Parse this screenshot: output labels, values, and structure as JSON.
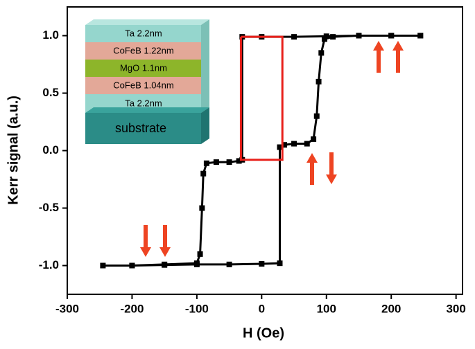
{
  "chart_data": {
    "type": "line",
    "xlabel": "H (Oe)",
    "ylabel": "Kerr signal (a.u.)",
    "xlim": [
      -300,
      310
    ],
    "ylim": [
      -1.25,
      1.25
    ],
    "xticks": [
      -300,
      -200,
      -100,
      0,
      100,
      200,
      300
    ],
    "yticks": [
      {
        "value": -1.0,
        "label": "-1.0"
      },
      -0.5,
      {
        "value": 0.0,
        "label": "0.0"
      },
      0.5,
      {
        "value": 1.0,
        "label": "1.0"
      }
    ],
    "series": [
      {
        "color": "#000000",
        "markers": true,
        "x": [
          245,
          200,
          150,
          100,
          50,
          0,
          -30,
          -30,
          -35,
          -50,
          -70,
          -85,
          -90,
          -92,
          -95,
          -100,
          -150,
          -200,
          -245,
          -200,
          -150,
          -100,
          -50,
          0,
          28,
          28,
          35,
          50,
          70,
          80,
          85,
          88,
          92,
          97,
          110,
          150,
          200,
          245
        ],
        "values": [
          1.0,
          1.0,
          1.0,
          0.995,
          0.99,
          0.99,
          0.99,
          -0.08,
          -0.09,
          -0.1,
          -0.1,
          -0.11,
          -0.2,
          -0.5,
          -0.9,
          -0.98,
          -0.99,
          -1.0,
          -1.0,
          -1.0,
          -0.995,
          -0.99,
          -0.99,
          -0.985,
          -0.98,
          0.03,
          0.05,
          0.06,
          0.06,
          0.1,
          0.3,
          0.6,
          0.85,
          0.97,
          0.99,
          1.0,
          1.0,
          1.0
        ]
      },
      {
        "color": "#e8201a",
        "markers": false,
        "x": [
          -32,
          32,
          32,
          -32,
          -32
        ],
        "values": [
          0.99,
          0.99,
          -0.08,
          -0.08,
          0.99
        ]
      }
    ],
    "inset_layers": [
      "Ta  2.2nm",
      "CoFeB 1.22nm",
      "MgO 1.1nm",
      "CoFeB 1.04nm",
      "Ta  2.2nm",
      "substrate"
    ]
  }
}
